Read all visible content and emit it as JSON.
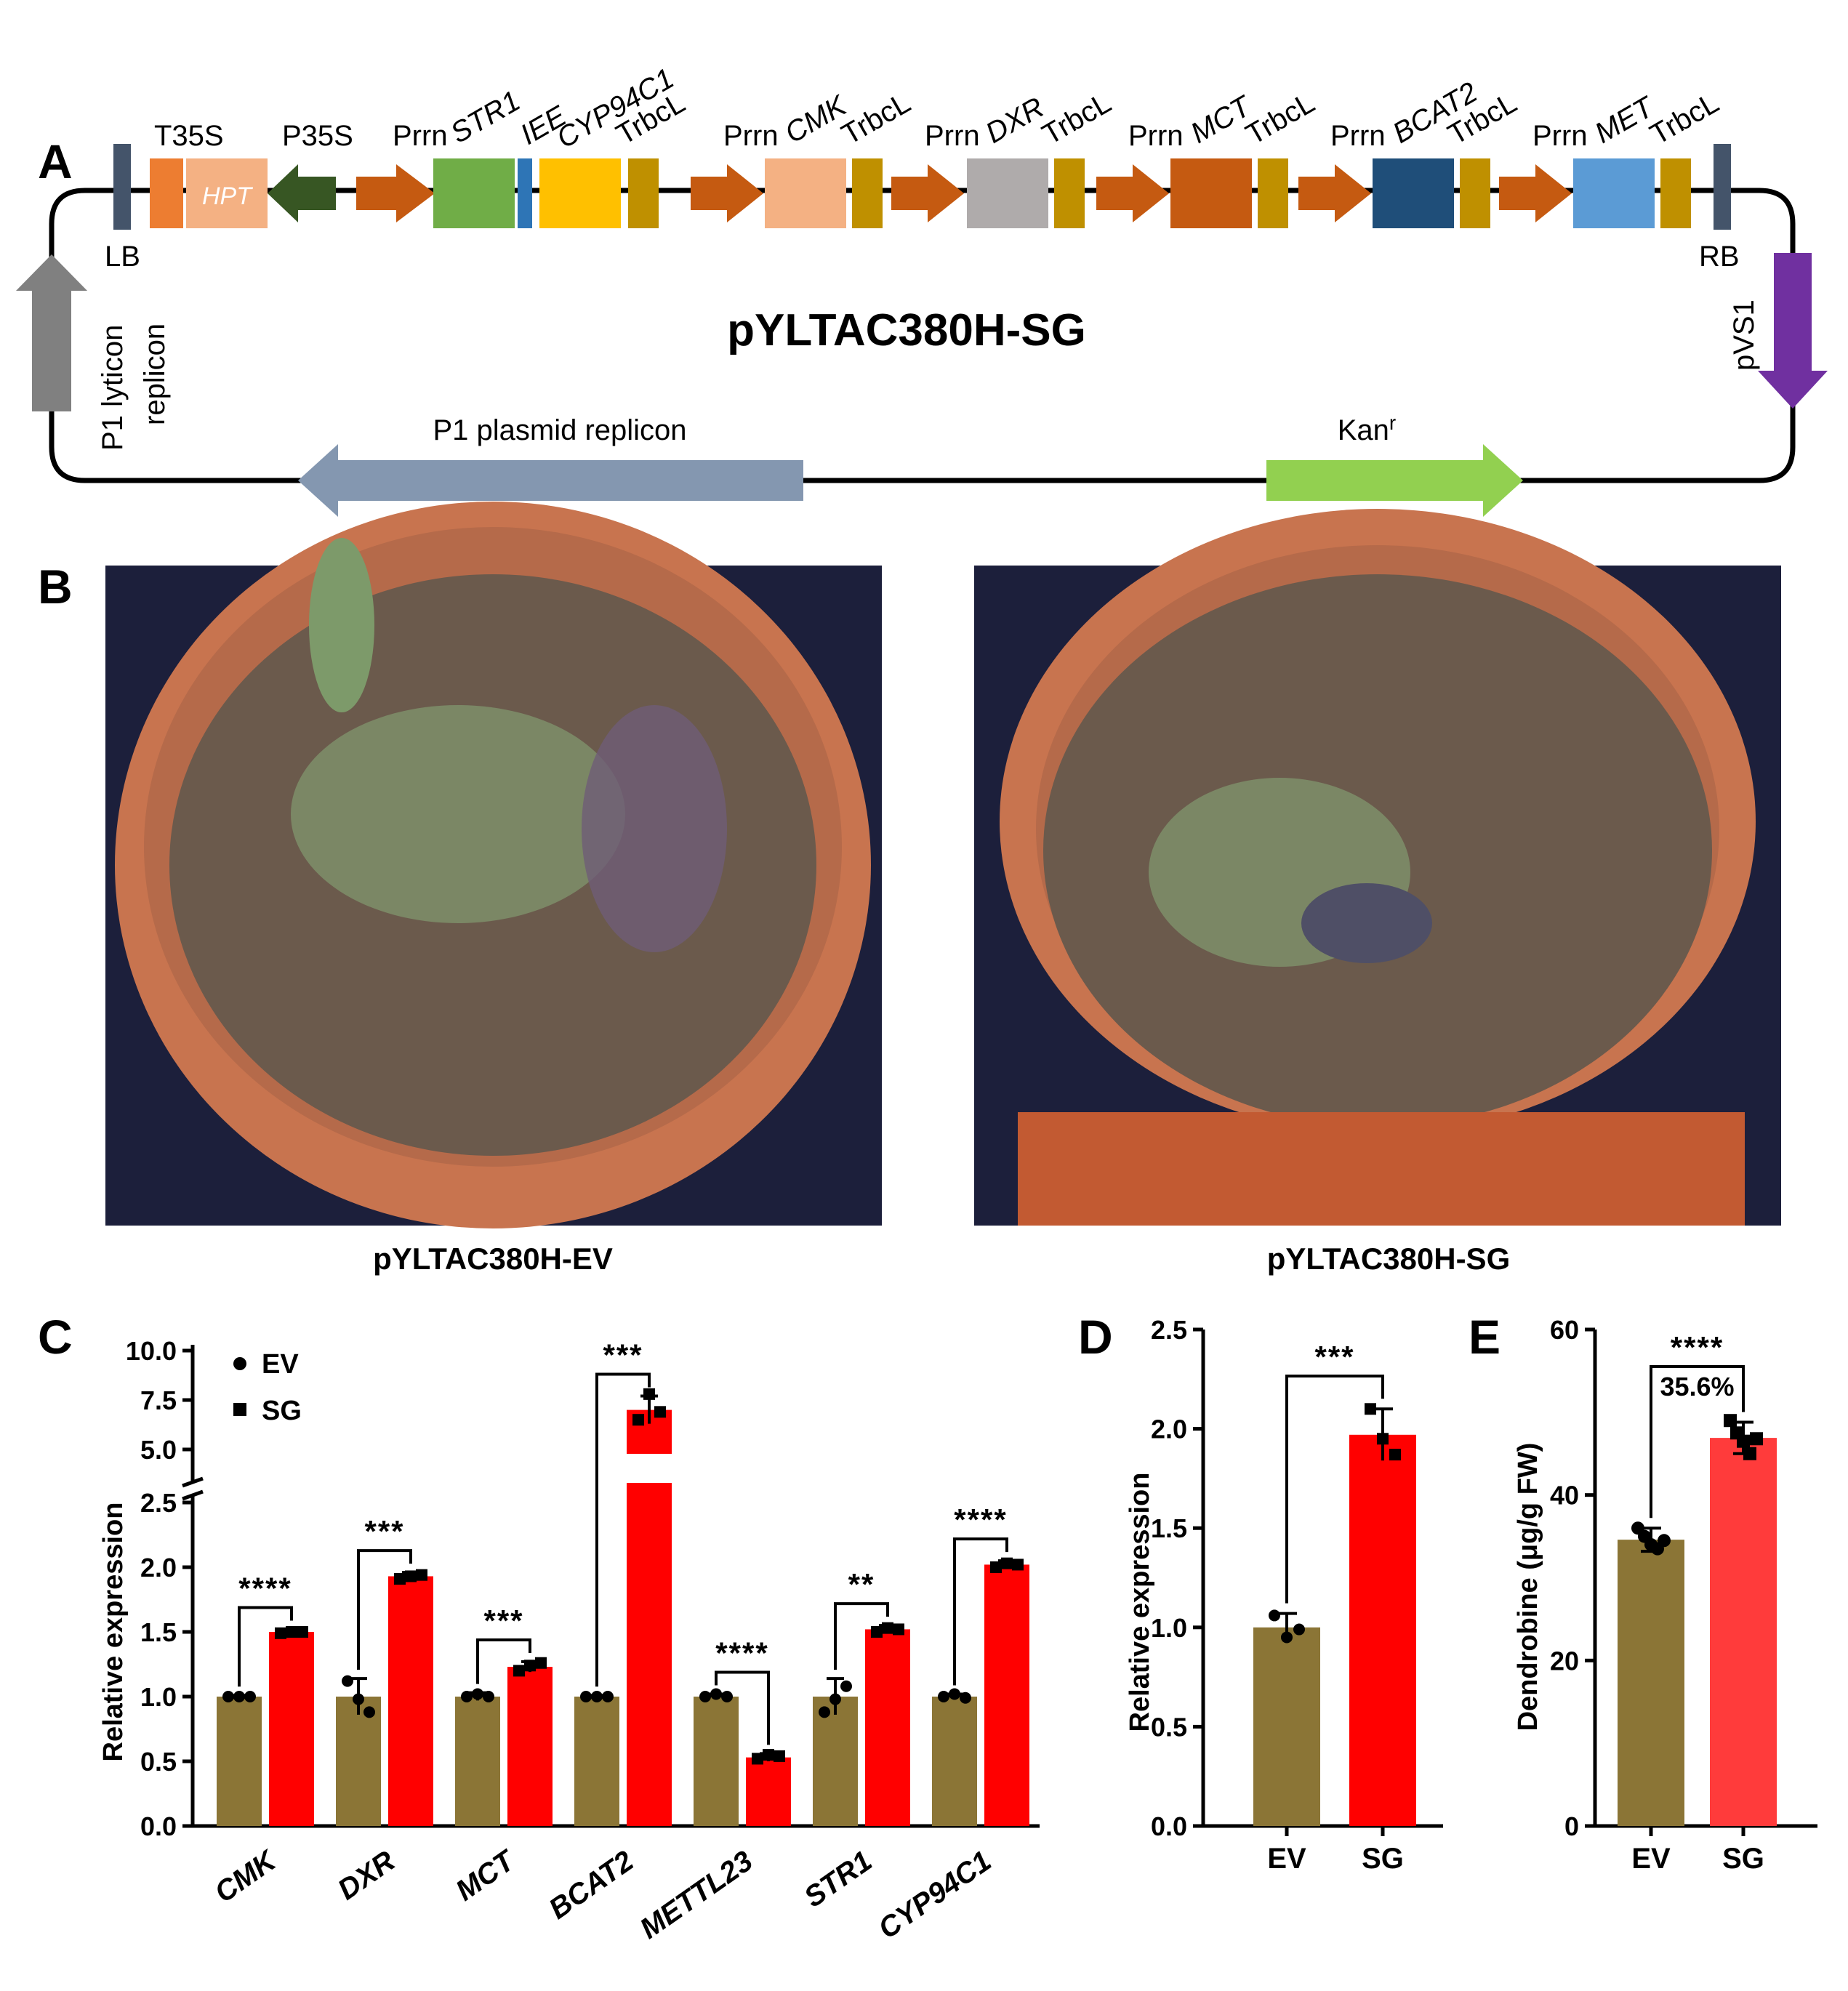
{
  "panels": {
    "a": "A",
    "b": "B",
    "c": "C",
    "d": "D",
    "e": "E"
  },
  "vector": {
    "title": "pYLTAC380H-SG",
    "lb": "LB",
    "rb": "RB",
    "p1_lyticon": "P1 lyticon",
    "replicon": "replicon",
    "pvs1": "pVS1",
    "p1_plasmid": "P1 plasmid replicon",
    "kan": "Kan",
    "kan_sup": "r",
    "hpt": "HPT",
    "t35s": "T35S",
    "p35s": "P35S",
    "prrn": "Prrn",
    "trbcl": "TrbcL",
    "str1": "STR1",
    "iee": "IEE",
    "cyp": "CYP94C1",
    "cmk": "CMK",
    "dxr": "DXR",
    "mct": "MCT",
    "bcat2": "BCAT2",
    "met": "MET",
    "colors": {
      "hpt": "#f4b183",
      "t35s": "#ed7d31",
      "p35s": "#375623",
      "prrn": "#c55a11",
      "trbcl": "#bf9000",
      "str1": "#70ad47",
      "iee": "#2e75b6",
      "cyp": "#ffc000",
      "cmk": "#f4b183",
      "dxr": "#afabab",
      "mct": "#c55a11",
      "bcat2": "#1f4e79",
      "met": "#5b9bd5",
      "border": "#44546a",
      "p1_lyticon": "#808080",
      "pvs1": "#7030a0",
      "p1_plasmid": "#8497b0",
      "kan": "#92d050"
    }
  },
  "photos": {
    "left_caption": "pYLTAC380H-EV",
    "right_caption": "pYLTAC380H-SG",
    "pot_color": "#c8744f",
    "bark_color": "#6b5a4c",
    "leaf_color": "#7e8f6a"
  },
  "colors": {
    "ev": "#8b7536",
    "sg": "#ff0000",
    "sg_e": "#ff3b3b"
  },
  "chart_data": [
    {
      "id": "C",
      "type": "bar",
      "ylabel": "Relative expression",
      "ytick_labels_lower": [
        "0.0",
        "0.5",
        "1.0",
        "1.5",
        "2.0",
        "2.5"
      ],
      "ytick_labels_upper": [
        "5.0",
        "7.5",
        "10.0"
      ],
      "y_break": [
        2.5,
        5.0
      ],
      "ylim_lower": [
        0,
        2.5
      ],
      "ylim_upper": [
        5.0,
        10.0
      ],
      "categories": [
        "CMK",
        "DXR",
        "MCT",
        "BCAT2",
        "METTL23",
        "STR1",
        "CYP94C1"
      ],
      "legend": [
        "EV",
        "SG"
      ],
      "series": [
        {
          "name": "EV",
          "values": [
            1.0,
            1.0,
            1.0,
            1.0,
            1.0,
            1.0,
            1.0
          ],
          "err": [
            0.01,
            0.14,
            0.03,
            0.01,
            0.02,
            0.14,
            0.02
          ]
        },
        {
          "name": "SG",
          "values": [
            1.5,
            1.93,
            1.23,
            7.0,
            0.53,
            1.52,
            2.02
          ],
          "err": [
            0.02,
            0.03,
            0.04,
            0.7,
            0.03,
            0.03,
            0.03
          ]
        }
      ],
      "points": {
        "EV": [
          [
            1.0,
            1.0,
            1.0
          ],
          [
            1.12,
            0.98,
            0.88
          ],
          [
            1.0,
            1.02,
            1.0
          ],
          [
            1.0,
            1.0,
            1.0
          ],
          [
            1.0,
            1.02,
            1.0
          ],
          [
            0.88,
            0.98,
            1.08
          ],
          [
            1.0,
            1.02,
            0.99
          ]
        ],
        "SG": [
          [
            1.49,
            1.5,
            1.5
          ],
          [
            1.91,
            1.93,
            1.94
          ],
          [
            1.2,
            1.24,
            1.26
          ],
          [
            6.5,
            7.8,
            6.9
          ],
          [
            0.52,
            0.55,
            0.54
          ],
          [
            1.5,
            1.53,
            1.52
          ],
          [
            2.0,
            2.03,
            2.02
          ]
        ]
      },
      "significance": [
        "****",
        "***",
        "***",
        "***",
        "****",
        "**",
        "****"
      ]
    },
    {
      "id": "D",
      "type": "bar",
      "ylabel": "Relative expression",
      "categories": [
        "EV",
        "SG"
      ],
      "values": [
        1.0,
        1.97
      ],
      "err": [
        0.07,
        0.13
      ],
      "points": [
        [
          1.06,
          0.95,
          0.99
        ],
        [
          2.1,
          1.95,
          1.87
        ]
      ],
      "ylim": [
        0,
        2.5
      ],
      "yticks": [
        "0.0",
        "0.5",
        "1.0",
        "1.5",
        "2.0",
        "2.5"
      ],
      "significance": "***"
    },
    {
      "id": "E",
      "type": "bar",
      "ylabel": "Dendrobine (μg/g FW)",
      "categories": [
        "EV",
        "SG"
      ],
      "values": [
        34.6,
        46.9
      ],
      "err": [
        1.4,
        1.9
      ],
      "points": [
        [
          36.0,
          35.0,
          34.0,
          33.5,
          34.5
        ],
        [
          49.0,
          47.5,
          46.5,
          45.0,
          46.8
        ]
      ],
      "ylim": [
        0,
        60
      ],
      "yticks": [
        "0",
        "20",
        "40",
        "60"
      ],
      "significance": "****",
      "annotation": "35.6%"
    }
  ]
}
